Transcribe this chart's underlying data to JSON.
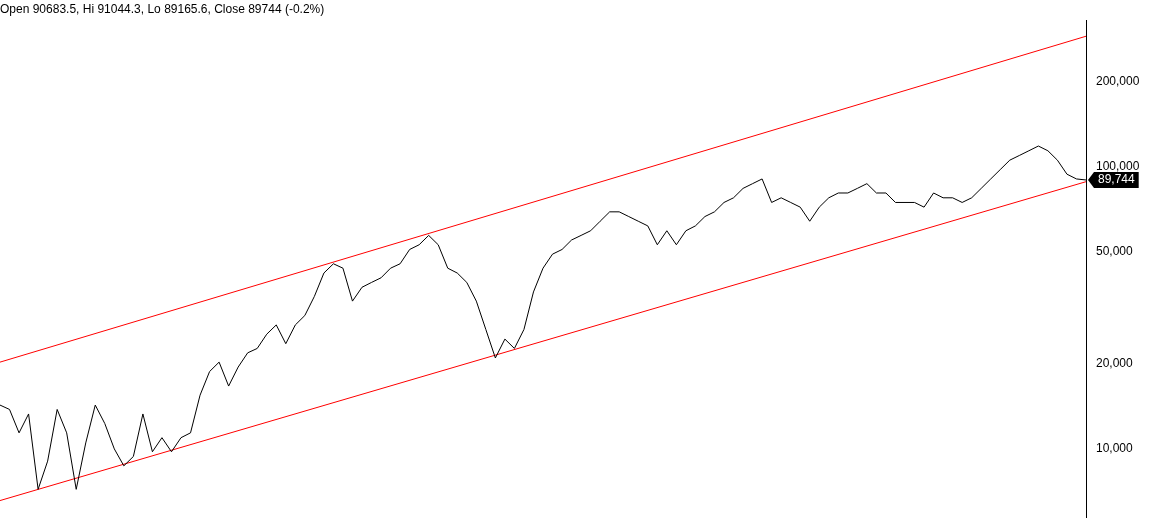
{
  "chart_data": {
    "type": "line",
    "title": "Open 90683.5, Hi 91044.3, Lo 89165.6, Close 89744 (-0.2%)",
    "categories": [
      null,
      null,
      null,
      null,
      null,
      null,
      null,
      null,
      null,
      null,
      null,
      null,
      null,
      null,
      null,
      null,
      null,
      null,
      null,
      null,
      null,
      null,
      null,
      null,
      null,
      null,
      null,
      null,
      null,
      null,
      null,
      null,
      null,
      null,
      null,
      null,
      null,
      null,
      null,
      null,
      null,
      null,
      null,
      null,
      null,
      null,
      null,
      null,
      null,
      null,
      null,
      null,
      null,
      null,
      null,
      null,
      null,
      null,
      null,
      null,
      null,
      null,
      null,
      null,
      null,
      null,
      null,
      null,
      null,
      null,
      null,
      null,
      null,
      null,
      null,
      null,
      null,
      null,
      null,
      null,
      null,
      null,
      null,
      null,
      null,
      null,
      null,
      null,
      null,
      null,
      null,
      null,
      null,
      null,
      null,
      null,
      null,
      null,
      null,
      null,
      null,
      null,
      null,
      null,
      null,
      null,
      null,
      null,
      null,
      null,
      null,
      null,
      null,
      null,
      null
    ],
    "series": [
      {
        "color": "#000000",
        "values": [
          14300,
          13800,
          11400,
          13300,
          7190,
          9050,
          13800,
          11400,
          7190,
          10500,
          14300,
          12300,
          10000,
          8710,
          9400,
          13300,
          9770,
          10960,
          9770,
          10960,
          11400,
          15500,
          18800,
          20300,
          16700,
          19500,
          21900,
          22700,
          25500,
          27500,
          23600,
          27500,
          29700,
          34700,
          42000,
          45300,
          43700,
          33400,
          37400,
          38900,
          40400,
          43700,
          45300,
          50900,
          52900,
          57100,
          52900,
          43700,
          42000,
          38900,
          33400,
          26500,
          21000,
          24500,
          22700,
          26500,
          36000,
          43700,
          49000,
          50900,
          55000,
          57100,
          59300,
          64100,
          69200,
          69200,
          66600,
          64100,
          61700,
          52900,
          59300,
          52900,
          59300,
          61700,
          66600,
          69200,
          74700,
          77600,
          83800,
          87100,
          90500,
          74700,
          77600,
          74700,
          71900,
          64100,
          71900,
          77600,
          80700,
          80700,
          83800,
          87100,
          80700,
          80700,
          74700,
          74700,
          74700,
          71900,
          80700,
          77600,
          77600,
          74700,
          77600,
          83800,
          90500,
          97700,
          105500,
          109600,
          113900,
          118400,
          113900,
          105500,
          94100,
          90500,
          89744
        ]
      },
      {
        "color": "#ff0000",
        "values": [
          20300,
          null,
          null,
          null,
          null,
          null,
          null,
          null,
          null,
          null,
          null,
          null,
          null,
          null,
          null,
          null,
          null,
          null,
          null,
          null,
          null,
          null,
          null,
          null,
          null,
          null,
          null,
          null,
          null,
          null,
          null,
          null,
          null,
          null,
          null,
          null,
          null,
          null,
          null,
          null,
          null,
          null,
          null,
          null,
          null,
          null,
          null,
          null,
          null,
          null,
          null,
          null,
          null,
          null,
          null,
          null,
          null,
          null,
          null,
          null,
          null,
          null,
          null,
          null,
          null,
          null,
          null,
          null,
          null,
          null,
          null,
          null,
          null,
          null,
          null,
          null,
          null,
          null,
          null,
          null,
          null,
          null,
          null,
          null,
          null,
          null,
          null,
          null,
          null,
          null,
          null,
          null,
          null,
          null,
          null,
          null,
          null,
          null,
          null,
          null,
          null,
          null,
          null,
          null,
          null,
          null,
          null,
          null,
          null,
          null,
          null,
          null,
          null,
          null,
          290000
        ]
      },
      {
        "color": "#ff0000",
        "values": [
          6560,
          null,
          null,
          null,
          null,
          null,
          null,
          null,
          null,
          null,
          null,
          null,
          null,
          null,
          null,
          null,
          null,
          null,
          null,
          null,
          null,
          null,
          null,
          null,
          null,
          null,
          null,
          null,
          null,
          null,
          null,
          null,
          null,
          null,
          null,
          null,
          null,
          null,
          null,
          null,
          null,
          null,
          null,
          null,
          null,
          null,
          null,
          null,
          null,
          null,
          null,
          null,
          null,
          null,
          null,
          null,
          null,
          null,
          null,
          null,
          null,
          null,
          null,
          null,
          null,
          null,
          null,
          null,
          null,
          null,
          null,
          null,
          null,
          null,
          null,
          null,
          null,
          null,
          null,
          null,
          null,
          null,
          null,
          null,
          null,
          null,
          null,
          null,
          null,
          null,
          null,
          null,
          null,
          null,
          null,
          null,
          null,
          null,
          null,
          null,
          null,
          null,
          null,
          null,
          null,
          null,
          null,
          null,
          null,
          null,
          null,
          null,
          null,
          null,
          88500
        ]
      }
    ],
    "ylim": [
      5700,
      330000
    ],
    "yticks": [
      {
        "value": 10000,
        "label": "10,000"
      },
      {
        "value": 20000,
        "label": "20,000"
      },
      {
        "value": 50000,
        "label": "50,000"
      },
      {
        "value": 100000,
        "label": "100,000"
      },
      {
        "value": 200000,
        "label": "200,000"
      }
    ],
    "log": "y",
    "grid": false,
    "legend": false,
    "marker": "none",
    "line_style": "solid",
    "tick_labels": "y",
    "annotations": [
      "89,744"
    ]
  }
}
